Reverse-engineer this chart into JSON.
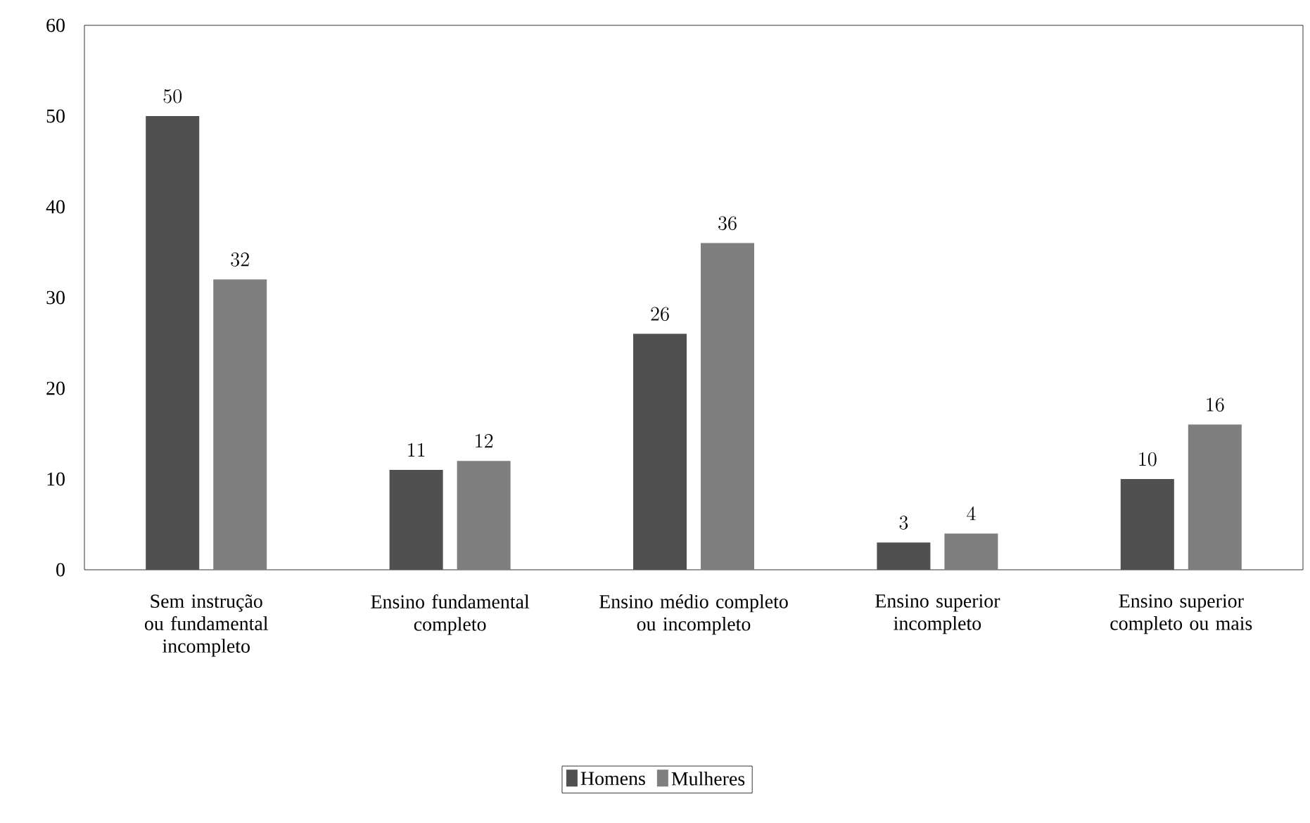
{
  "chart_data": {
    "type": "bar",
    "categories": [
      "Sem instrução ou fundamental incompleto",
      "Ensino fundamental completo",
      "Ensino médio completo ou incompleto",
      "Ensino superior incompleto",
      "Ensino superior completo ou mais"
    ],
    "series": [
      {
        "name": "Homens",
        "color": "#505050",
        "values": [
          50,
          11,
          26,
          3,
          10
        ]
      },
      {
        "name": "Mulheres",
        "color": "#7f7f7f",
        "values": [
          32,
          12,
          36,
          4,
          16
        ]
      }
    ],
    "ylim": [
      0,
      60
    ],
    "yticks": [
      0,
      10,
      20,
      30,
      40,
      50,
      60
    ],
    "data_labels": true,
    "legend": "bottom"
  }
}
